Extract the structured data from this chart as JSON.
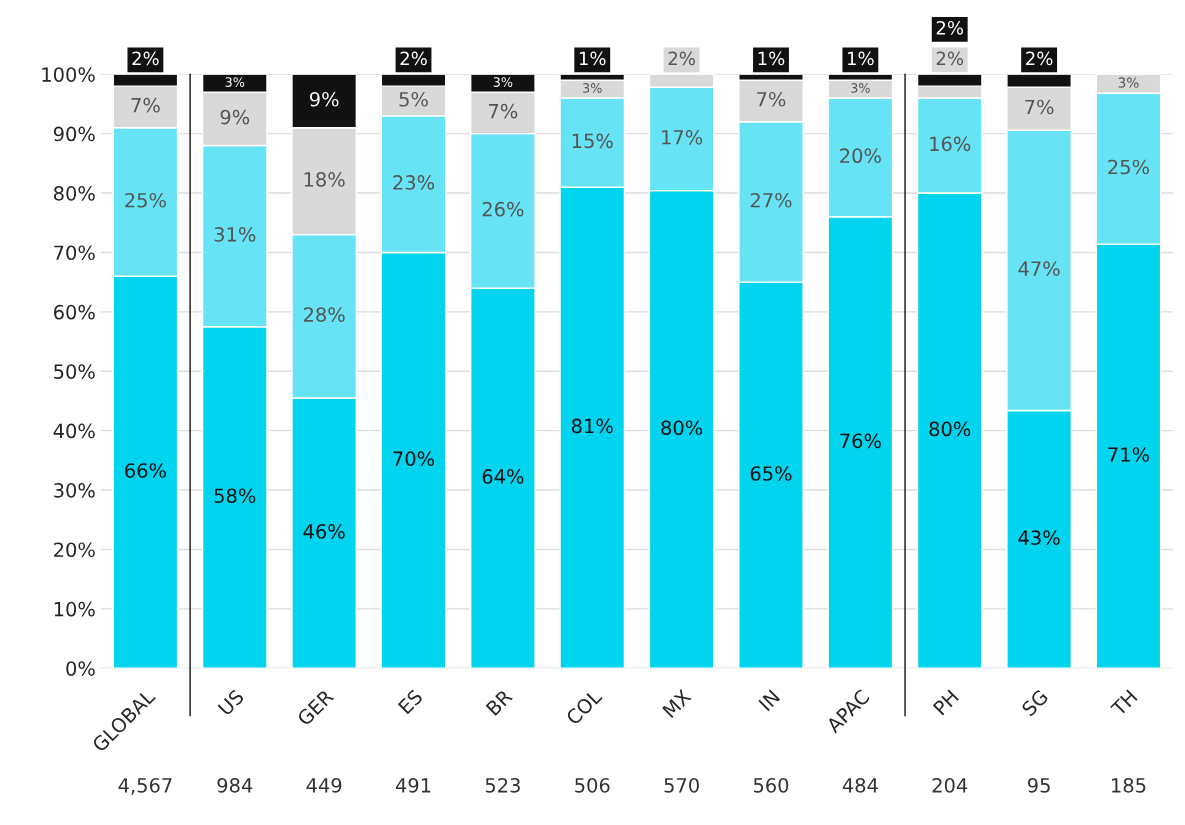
{
  "chart_data": {
    "type": "bar",
    "stacked": true,
    "categories": [
      "GLOBAL",
      "US",
      "GER",
      "ES",
      "BR",
      "COL",
      "MX",
      "IN",
      "APAC",
      "PH",
      "SG",
      "TH"
    ],
    "series": [
      {
        "color": "#00d4ee",
        "values": [
          66,
          57.5,
          45.5,
          70,
          64,
          81,
          80.4,
          65,
          76,
          80,
          43.4,
          71.4
        ],
        "value_labels": [
          "66%",
          "58%",
          "46%",
          "70%",
          "64%",
          "81%",
          "80%",
          "65%",
          "76%",
          "80%",
          "43%",
          "71%"
        ]
      },
      {
        "color": "#66e3f4",
        "values": [
          25,
          30.5,
          27.5,
          23,
          26,
          15,
          17.4,
          27,
          20,
          16,
          47.2,
          25.4
        ],
        "value_labels": [
          "25%",
          "31%",
          "28%",
          "23%",
          "26%",
          "15%",
          "17%",
          "27%",
          "20%",
          "16%",
          "47%",
          "25%"
        ]
      },
      {
        "color": "#d9d9d9",
        "values": [
          7,
          9,
          18,
          5,
          7,
          3,
          2.2,
          7,
          3,
          2,
          7.2,
          3.2
        ],
        "value_labels": [
          "7%",
          "9%",
          "18%",
          "5%",
          "7%",
          "3%",
          "2%",
          "7%",
          "3%",
          "2%",
          "7%",
          "3%"
        ]
      },
      {
        "color": "#111111",
        "values": [
          2,
          3,
          9,
          2,
          3,
          1,
          null,
          1,
          1,
          2,
          2.2,
          null
        ],
        "value_labels": [
          "2%",
          "3%",
          "9%",
          "2%",
          "3%",
          "1%",
          null,
          "1%",
          "1%",
          "2%",
          "2%",
          null
        ]
      }
    ],
    "ylim": [
      0,
      100
    ],
    "yticks": [
      {
        "value": 0,
        "label": "0%"
      },
      {
        "value": 10,
        "label": "10%"
      },
      {
        "value": 20,
        "label": "20%"
      },
      {
        "value": 30,
        "label": "30%"
      },
      {
        "value": 40,
        "label": "40%"
      },
      {
        "value": 50,
        "label": "50%"
      },
      {
        "value": 60,
        "label": "60%"
      },
      {
        "value": 70,
        "label": "70%"
      },
      {
        "value": 80,
        "label": "80%"
      },
      {
        "value": 90,
        "label": "90%"
      },
      {
        "value": 100,
        "label": "100%"
      }
    ],
    "grid": "y",
    "annotations": [
      "4,567",
      "984",
      "449",
      "491",
      "523",
      "506",
      "570",
      "560",
      "484",
      "204",
      "95",
      "185"
    ]
  }
}
